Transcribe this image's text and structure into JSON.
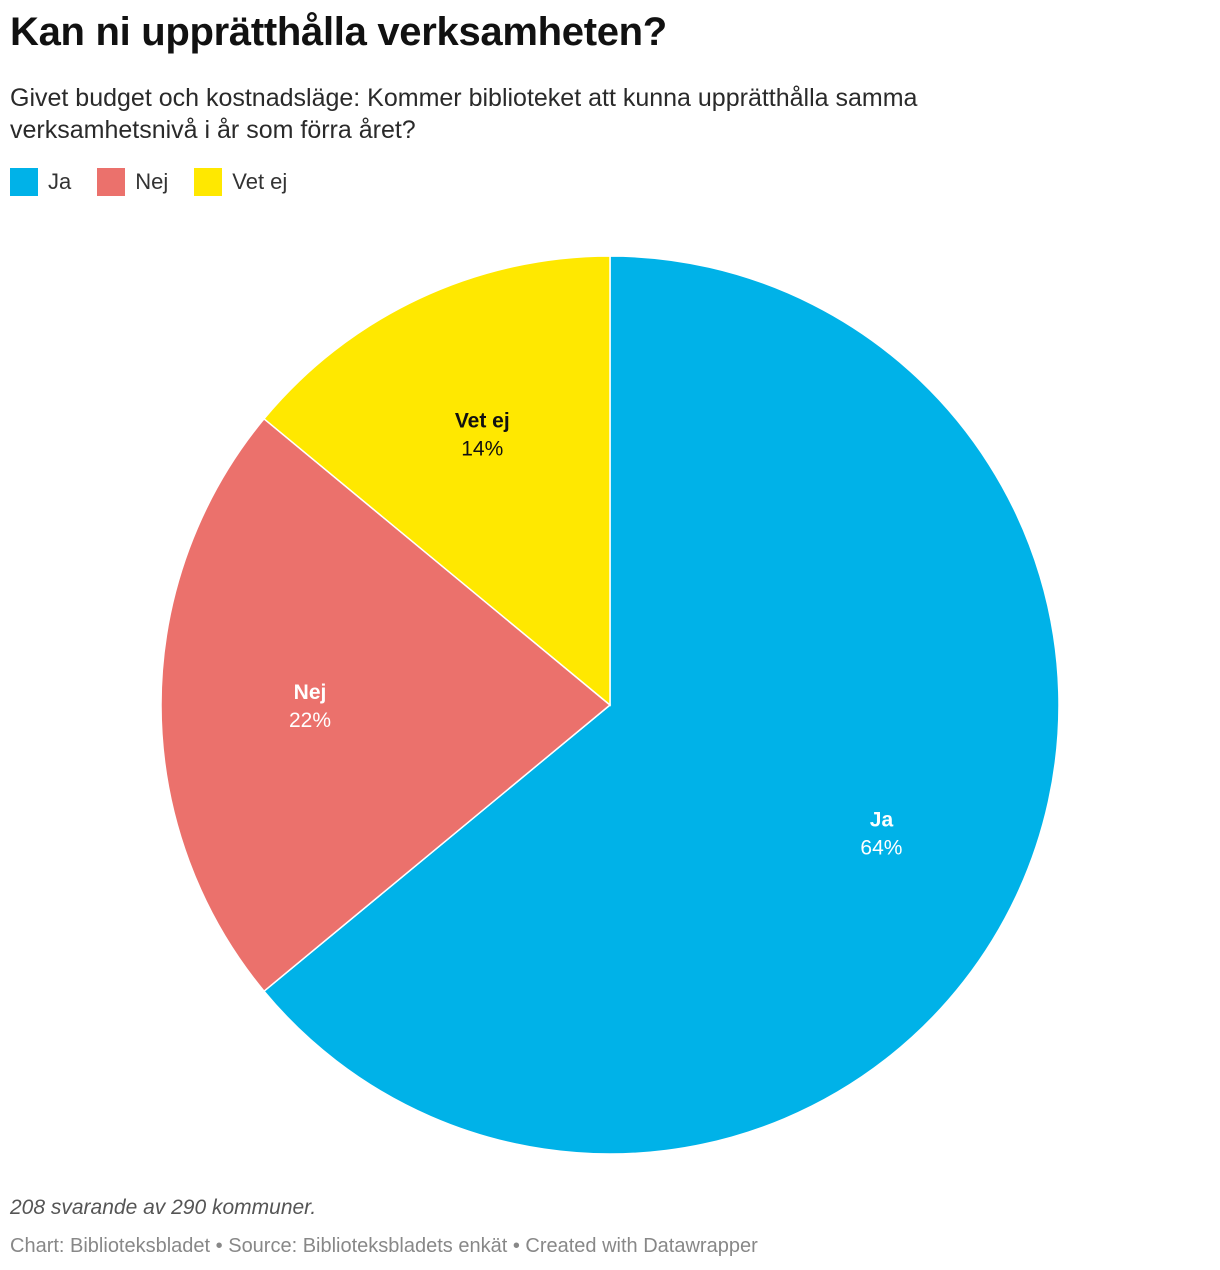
{
  "header": {
    "title": "Kan ni upprätthålla verksamheten?",
    "subtitle": "Givet budget och kostnadsläge: Kommer biblioteket att kunna upprätthålla samma verksamhetsnivå i år som förra året?"
  },
  "legend": {
    "items": [
      {
        "label": "Ja",
        "color": "#00b2e8"
      },
      {
        "label": "Nej",
        "color": "#eb716c"
      },
      {
        "label": "Vet ej",
        "color": "#ffe800"
      }
    ]
  },
  "chart_data": {
    "type": "pie",
    "title": "Kan ni upprätthålla verksamheten?",
    "categories": [
      "Ja",
      "Nej",
      "Vet ej"
    ],
    "values": [
      64,
      22,
      14
    ],
    "value_labels": [
      "64%",
      "22%",
      "14%"
    ],
    "colors": [
      "#00b2e8",
      "#eb716c",
      "#ffe800"
    ],
    "label_colors": [
      "#ffffff",
      "#ffffff",
      "#111111"
    ],
    "start": "12 o'clock",
    "direction": "clockwise"
  },
  "footer": {
    "note": "208 svarande av 290 kommuner.",
    "credits": "Chart: Biblioteksbladet • Source: Biblioteksbladets enkät • Created with Datawrapper"
  }
}
